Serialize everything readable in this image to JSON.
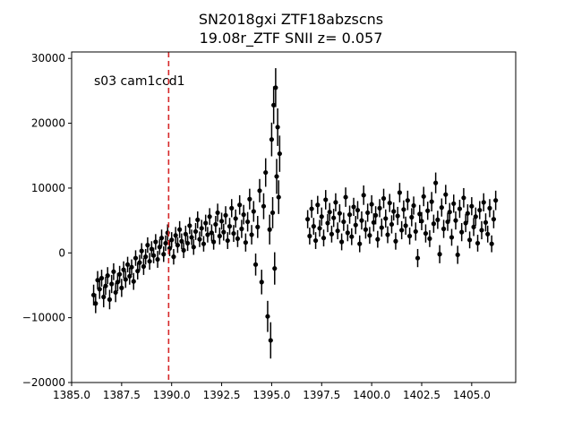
{
  "chart_data": {
    "type": "scatter",
    "title_line1": "SN2018gxi  ZTF18abzscns",
    "title_line2": "19.08r_ZTF SNII z= 0.057",
    "annotation": "s03 cam1ccd1",
    "xlabel": "",
    "ylabel": "",
    "xlim": [
      1385.0,
      1407.2
    ],
    "ylim": [
      -20000,
      31000
    ],
    "x_ticks": [
      1385.0,
      1387.5,
      1390.0,
      1392.5,
      1395.0,
      1397.5,
      1400.0,
      1402.5,
      1405.0
    ],
    "x_tick_labels": [
      "1385.0",
      "1387.5",
      "1390.0",
      "1392.5",
      "1395.0",
      "1397.5",
      "1400.0",
      "1402.5",
      "1405.0"
    ],
    "y_ticks": [
      -20000,
      -10000,
      0,
      10000,
      20000,
      30000
    ],
    "y_tick_labels": [
      "−20000",
      "−10000",
      "0",
      "10000",
      "20000",
      "30000"
    ],
    "vline_x": 1389.85,
    "vline_color": "#d62728",
    "marker_color": "#000000",
    "grid": false,
    "series": [
      {
        "points": [
          [
            1386.1,
            -6500,
            1600
          ],
          [
            1386.2,
            -7800,
            1500
          ],
          [
            1386.3,
            -4200,
            1400
          ],
          [
            1386.4,
            -5600,
            1500
          ],
          [
            1386.5,
            -3900,
            1300
          ],
          [
            1386.6,
            -6800,
            1600
          ],
          [
            1386.7,
            -5100,
            1400
          ],
          [
            1386.8,
            -3500,
            1300
          ],
          [
            1386.9,
            -7200,
            1500
          ],
          [
            1387.0,
            -4800,
            1400
          ],
          [
            1387.1,
            -2900,
            1300
          ],
          [
            1387.2,
            -6100,
            1500
          ],
          [
            1387.3,
            -4500,
            1400
          ],
          [
            1387.4,
            -3300,
            1300
          ],
          [
            1387.5,
            -5400,
            1400
          ],
          [
            1387.6,
            -2600,
            1300
          ],
          [
            1387.7,
            -4100,
            1300
          ],
          [
            1387.8,
            -1800,
            1200
          ],
          [
            1387.9,
            -3600,
            1300
          ],
          [
            1388.0,
            -2200,
            1200
          ],
          [
            1388.1,
            -4400,
            1300
          ],
          [
            1388.2,
            -800,
            1200
          ],
          [
            1388.3,
            -2800,
            1300
          ],
          [
            1388.4,
            -1500,
            1200
          ],
          [
            1388.5,
            300,
            1200
          ],
          [
            1388.6,
            -2100,
            1300
          ],
          [
            1388.7,
            -600,
            1200
          ],
          [
            1388.8,
            1200,
            1200
          ],
          [
            1388.9,
            -1300,
            1300
          ],
          [
            1389.0,
            600,
            1200
          ],
          [
            1389.1,
            -400,
            1200
          ],
          [
            1389.2,
            1700,
            1200
          ],
          [
            1389.3,
            -1000,
            1300
          ],
          [
            1389.4,
            900,
            1200
          ],
          [
            1389.5,
            2300,
            1300
          ],
          [
            1389.6,
            -200,
            1200
          ],
          [
            1389.7,
            1500,
            1200
          ],
          [
            1389.8,
            3100,
            1300
          ],
          [
            1389.9,
            700,
            1200
          ],
          [
            1390.0,
            2000,
            1200
          ],
          [
            1390.1,
            -600,
            1200
          ],
          [
            1390.2,
            2700,
            1300
          ],
          [
            1390.3,
            1200,
            1200
          ],
          [
            1390.4,
            3600,
            1300
          ],
          [
            1390.5,
            1800,
            1200
          ],
          [
            1390.6,
            400,
            1200
          ],
          [
            1390.7,
            2900,
            1300
          ],
          [
            1390.8,
            1500,
            1200
          ],
          [
            1390.9,
            4200,
            1300
          ],
          [
            1391.0,
            2400,
            1200
          ],
          [
            1391.1,
            900,
            1200
          ],
          [
            1391.2,
            3300,
            1300
          ],
          [
            1391.3,
            5100,
            1300
          ],
          [
            1391.4,
            2100,
            1200
          ],
          [
            1391.5,
            3800,
            1300
          ],
          [
            1391.6,
            1400,
            1200
          ],
          [
            1391.7,
            4600,
            1300
          ],
          [
            1391.8,
            2800,
            1200
          ],
          [
            1391.9,
            5600,
            1300
          ],
          [
            1392.0,
            3100,
            1300
          ],
          [
            1392.1,
            1700,
            1200
          ],
          [
            1392.2,
            4400,
            1300
          ],
          [
            1392.3,
            6200,
            1400
          ],
          [
            1392.4,
            2600,
            1300
          ],
          [
            1392.5,
            4900,
            1300
          ],
          [
            1392.6,
            3200,
            1300
          ],
          [
            1392.7,
            5800,
            1400
          ],
          [
            1392.8,
            1900,
            1300
          ],
          [
            1392.9,
            4100,
            1300
          ],
          [
            1393.0,
            6900,
            1400
          ],
          [
            1393.1,
            3000,
            1300
          ],
          [
            1393.2,
            5300,
            1400
          ],
          [
            1393.3,
            2200,
            1300
          ],
          [
            1393.4,
            7400,
            1500
          ],
          [
            1393.5,
            3700,
            1400
          ],
          [
            1393.6,
            5900,
            1500
          ],
          [
            1393.7,
            1600,
            1400
          ],
          [
            1393.8,
            4800,
            1500
          ],
          [
            1393.9,
            8300,
            1600
          ],
          [
            1394.0,
            2800,
            1500
          ],
          [
            1394.1,
            6400,
            1600
          ],
          [
            1394.2,
            -1800,
            1700
          ],
          [
            1394.3,
            4000,
            1700
          ],
          [
            1394.4,
            9600,
            1800
          ],
          [
            1394.5,
            -4500,
            1900
          ],
          [
            1394.6,
            7200,
            2000
          ],
          [
            1394.7,
            12400,
            2200
          ],
          [
            1394.8,
            -9800,
            2400
          ],
          [
            1394.9,
            3600,
            2300
          ],
          [
            1394.95,
            -13500,
            2800
          ],
          [
            1395.0,
            17500,
            2600
          ],
          [
            1395.05,
            6200,
            2400
          ],
          [
            1395.1,
            22800,
            2900
          ],
          [
            1395.15,
            -2400,
            2500
          ],
          [
            1395.2,
            25500,
            3000
          ],
          [
            1395.25,
            11800,
            2700
          ],
          [
            1395.3,
            19400,
            2900
          ],
          [
            1395.35,
            8600,
            2600
          ],
          [
            1395.4,
            15300,
            2800
          ],
          [
            1396.8,
            5200,
            1400
          ],
          [
            1396.9,
            2600,
            1300
          ],
          [
            1397.0,
            6800,
            1400
          ],
          [
            1397.1,
            4100,
            1300
          ],
          [
            1397.2,
            1900,
            1300
          ],
          [
            1397.3,
            7400,
            1400
          ],
          [
            1397.4,
            3800,
            1300
          ],
          [
            1397.5,
            5600,
            1400
          ],
          [
            1397.6,
            2300,
            1300
          ],
          [
            1397.7,
            8200,
            1500
          ],
          [
            1397.8,
            4600,
            1400
          ],
          [
            1397.9,
            6300,
            1400
          ],
          [
            1398.0,
            2900,
            1300
          ],
          [
            1398.1,
            5400,
            1400
          ],
          [
            1398.2,
            7800,
            1400
          ],
          [
            1398.3,
            3400,
            1300
          ],
          [
            1398.4,
            6100,
            1400
          ],
          [
            1398.5,
            1700,
            1300
          ],
          [
            1398.6,
            4800,
            1400
          ],
          [
            1398.7,
            8600,
            1500
          ],
          [
            1398.8,
            3100,
            1300
          ],
          [
            1398.9,
            5900,
            1400
          ],
          [
            1399.0,
            2500,
            1300
          ],
          [
            1399.1,
            7100,
            1400
          ],
          [
            1399.2,
            4300,
            1400
          ],
          [
            1399.3,
            6600,
            1400
          ],
          [
            1399.4,
            1400,
            1300
          ],
          [
            1399.5,
            5000,
            1400
          ],
          [
            1399.6,
            8900,
            1500
          ],
          [
            1399.7,
            3600,
            1400
          ],
          [
            1399.8,
            6200,
            1400
          ],
          [
            1399.9,
            2700,
            1300
          ],
          [
            1400.0,
            7500,
            1400
          ],
          [
            1400.1,
            4700,
            1400
          ],
          [
            1400.2,
            5800,
            1400
          ],
          [
            1400.3,
            2100,
            1300
          ],
          [
            1400.4,
            6900,
            1400
          ],
          [
            1400.5,
            3900,
            1400
          ],
          [
            1400.6,
            8400,
            1500
          ],
          [
            1400.7,
            5300,
            1400
          ],
          [
            1400.8,
            2800,
            1300
          ],
          [
            1400.9,
            7700,
            1400
          ],
          [
            1401.0,
            4400,
            1400
          ],
          [
            1401.1,
            6400,
            1400
          ],
          [
            1401.2,
            1800,
            1300
          ],
          [
            1401.3,
            5700,
            1400
          ],
          [
            1401.4,
            9300,
            1500
          ],
          [
            1401.5,
            3500,
            1400
          ],
          [
            1401.6,
            6700,
            1400
          ],
          [
            1401.7,
            4200,
            1400
          ],
          [
            1401.8,
            8100,
            1500
          ],
          [
            1401.9,
            2600,
            1300
          ],
          [
            1402.0,
            5500,
            1400
          ],
          [
            1402.1,
            7300,
            1400
          ],
          [
            1402.2,
            3300,
            1400
          ],
          [
            1402.3,
            -800,
            1400
          ],
          [
            1402.4,
            6000,
            1400
          ],
          [
            1402.5,
            4900,
            1400
          ],
          [
            1402.6,
            8700,
            1500
          ],
          [
            1402.7,
            3000,
            1400
          ],
          [
            1402.8,
            6500,
            1400
          ],
          [
            1402.9,
            2200,
            1300
          ],
          [
            1403.0,
            7900,
            1500
          ],
          [
            1403.1,
            4500,
            1400
          ],
          [
            1403.2,
            10800,
            1600
          ],
          [
            1403.3,
            5100,
            1400
          ],
          [
            1403.4,
            -200,
            1400
          ],
          [
            1403.5,
            7000,
            1400
          ],
          [
            1403.6,
            3700,
            1400
          ],
          [
            1403.7,
            9000,
            1500
          ],
          [
            1403.8,
            4800,
            1400
          ],
          [
            1403.9,
            6300,
            1400
          ],
          [
            1404.0,
            2400,
            1300
          ],
          [
            1404.1,
            7600,
            1400
          ],
          [
            1404.2,
            5000,
            1400
          ],
          [
            1404.3,
            -300,
            1400
          ],
          [
            1404.4,
            6800,
            1400
          ],
          [
            1404.5,
            3200,
            1400
          ],
          [
            1404.6,
            8500,
            1500
          ],
          [
            1404.7,
            4600,
            1400
          ],
          [
            1404.8,
            6100,
            1400
          ],
          [
            1404.9,
            2000,
            1300
          ],
          [
            1405.0,
            7200,
            1400
          ],
          [
            1405.1,
            4000,
            1400
          ],
          [
            1405.2,
            5600,
            1400
          ],
          [
            1405.3,
            1500,
            1300
          ],
          [
            1405.4,
            6600,
            1400
          ],
          [
            1405.5,
            3500,
            1400
          ],
          [
            1405.6,
            7800,
            1400
          ],
          [
            1405.7,
            4700,
            1400
          ],
          [
            1405.8,
            2900,
            1300
          ],
          [
            1405.9,
            6900,
            1400
          ],
          [
            1406.0,
            1400,
            1300
          ],
          [
            1406.1,
            5200,
            1400
          ],
          [
            1406.2,
            8100,
            1500
          ]
        ]
      }
    ]
  }
}
